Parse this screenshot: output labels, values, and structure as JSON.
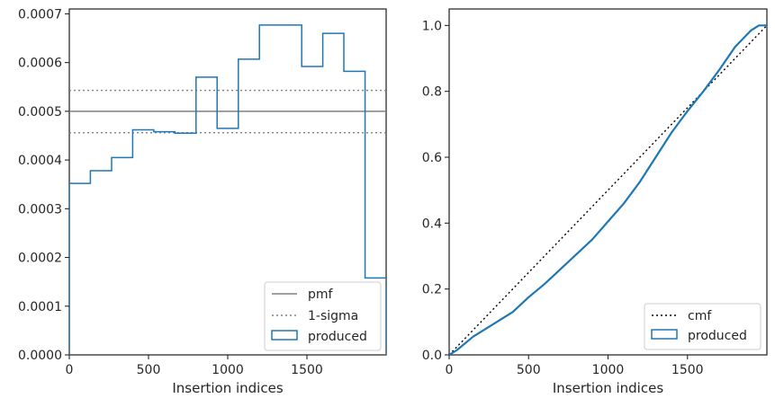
{
  "chart_data": [
    {
      "type": "step-histogram",
      "xlabel": "Insertion indices",
      "ylabel": "",
      "xlim": [
        0,
        2000
      ],
      "ylim": [
        0,
        0.00071
      ],
      "xticks": [
        0,
        500,
        1000,
        1500
      ],
      "yticks": [
        0.0,
        0.0001,
        0.0002,
        0.0003,
        0.0004,
        0.0005,
        0.0006,
        0.0007
      ],
      "ytick_labels": [
        "0.0000",
        "0.0001",
        "0.0002",
        "0.0003",
        "0.0004",
        "0.0005",
        "0.0006",
        "0.0007"
      ],
      "bin_edges": [
        0,
        133,
        267,
        400,
        533,
        667,
        800,
        933,
        1067,
        1200,
        1333,
        1467,
        1600,
        1733,
        1867,
        2000
      ],
      "values": [
        0.000352,
        0.000378,
        0.000405,
        0.000462,
        0.000458,
        0.000455,
        0.00057,
        0.000465,
        0.000607,
        0.000677,
        0.000677,
        0.000592,
        0.00066,
        0.000582,
        0.000158
      ],
      "pmf": 0.0005,
      "sigma_band": [
        0.000456,
        0.000543
      ],
      "legend_position": "lower-right",
      "series": [
        {
          "name": "pmf",
          "style": "solid",
          "color": "#808080"
        },
        {
          "name": "1-sigma",
          "style": "dotted",
          "color": "#808080"
        },
        {
          "name": "produced",
          "style": "step",
          "color": "#1f77b4"
        }
      ]
    },
    {
      "type": "line",
      "xlabel": "Insertion indices",
      "ylabel": "",
      "xlim": [
        0,
        2000
      ],
      "ylim": [
        0,
        1.05
      ],
      "xticks": [
        0,
        500,
        1000,
        1500
      ],
      "yticks": [
        0.0,
        0.2,
        0.4,
        0.6,
        0.8,
        1.0
      ],
      "ytick_labels": [
        "0.0",
        "0.2",
        "0.4",
        "0.6",
        "0.8",
        "1.0"
      ],
      "legend_position": "lower-right",
      "series": [
        {
          "name": "cmf",
          "style": "dotted",
          "color": "#000000",
          "x": [
            0,
            2000
          ],
          "y": [
            0,
            1
          ]
        },
        {
          "name": "produced",
          "style": "solid",
          "color": "#1f77b4",
          "x": [
            0,
            50,
            100,
            150,
            200,
            300,
            400,
            500,
            600,
            700,
            800,
            900,
            1000,
            1100,
            1200,
            1300,
            1400,
            1500,
            1600,
            1700,
            1800,
            1900,
            1950,
            2000
          ],
          "y": [
            0,
            0.015,
            0.035,
            0.055,
            0.07,
            0.1,
            0.13,
            0.175,
            0.215,
            0.26,
            0.305,
            0.35,
            0.405,
            0.46,
            0.525,
            0.6,
            0.675,
            0.74,
            0.8,
            0.865,
            0.935,
            0.985,
            1.0,
            1.0
          ]
        }
      ]
    }
  ]
}
